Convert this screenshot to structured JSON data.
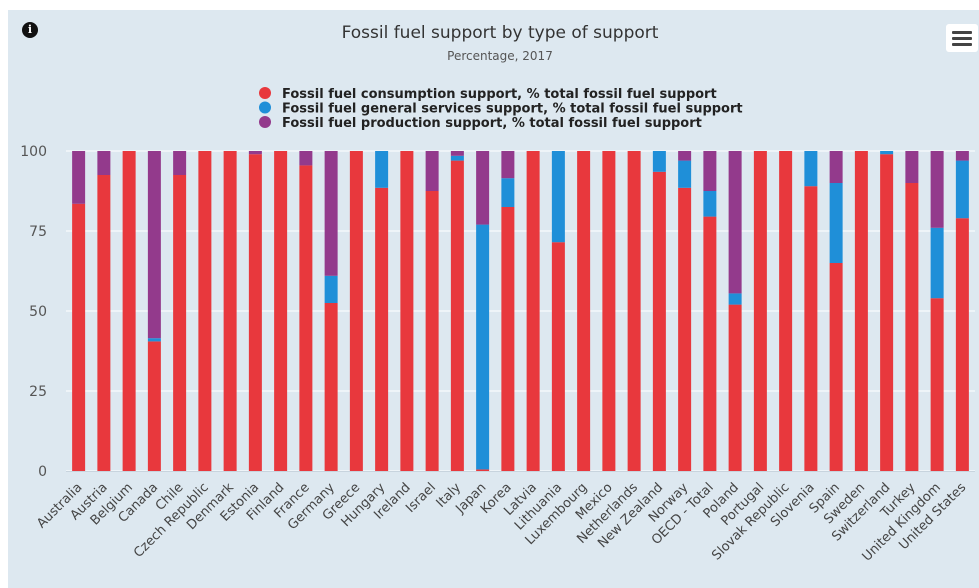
{
  "chart_data": {
    "type": "bar",
    "stacked": true,
    "title": "Fossil fuel support by type of support",
    "subtitle": "Percentage, 2017",
    "ylim": [
      0,
      100
    ],
    "yticks": [
      0,
      25,
      50,
      75,
      100
    ],
    "grid": true,
    "legend_position": "top-center",
    "categories": [
      "Australia",
      "Austria",
      "Belgium",
      "Canada",
      "Chile",
      "Czech Republic",
      "Denmark",
      "Estonia",
      "Finland",
      "France",
      "Germany",
      "Greece",
      "Hungary",
      "Ireland",
      "Israel",
      "Italy",
      "Japan",
      "Korea",
      "Latvia",
      "Lithuania",
      "Luxembourg",
      "Mexico",
      "Netherlands",
      "New Zealand",
      "Norway",
      "OECD - Total",
      "Poland",
      "Portugal",
      "Slovak Republic",
      "Slovenia",
      "Spain",
      "Sweden",
      "Switzerland",
      "Turkey",
      "United Kingdom",
      "United States"
    ],
    "series": [
      {
        "name": "Fossil fuel consumption support, % total fossil fuel support",
        "color": "#e8383d",
        "values": [
          83.5,
          92.5,
          100,
          40.5,
          92.5,
          100,
          100,
          99,
          100,
          95.5,
          52.5,
          100,
          88.5,
          100,
          87.5,
          97,
          0.5,
          82.5,
          100,
          71.5,
          100,
          100,
          100,
          93.5,
          88.5,
          79.5,
          52,
          100,
          100,
          89,
          65,
          100,
          99,
          90,
          54,
          79
        ]
      },
      {
        "name": "Fossil fuel general services support, % total fossil fuel support",
        "color": "#1f8fd8",
        "values": [
          0,
          0,
          0,
          1,
          0,
          0,
          0,
          0,
          0,
          0,
          8.5,
          0,
          11.5,
          0,
          0,
          1.5,
          76.5,
          9,
          0,
          28.5,
          0,
          0,
          0,
          6.5,
          8.5,
          8,
          3.5,
          0,
          0,
          11,
          25,
          0,
          1,
          0,
          22,
          18
        ]
      },
      {
        "name": "Fossil fuel production support, % total fossil fuel support",
        "color": "#933a8c",
        "values": [
          16.5,
          7.5,
          0,
          58.5,
          7.5,
          0,
          0,
          1,
          0,
          4.5,
          39,
          0,
          0,
          0,
          12.5,
          1.5,
          23,
          8.5,
          0,
          0,
          0,
          0,
          0,
          0,
          3,
          12.5,
          44.5,
          0,
          0,
          0,
          10,
          0,
          0,
          10,
          24,
          3
        ]
      }
    ]
  }
}
